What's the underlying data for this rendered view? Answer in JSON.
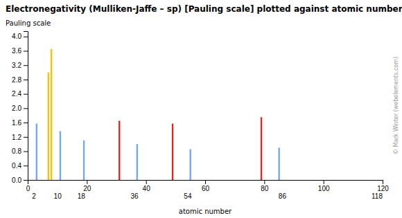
{
  "chart_data": {
    "type": "bar",
    "title": "Electronegativity (Mulliken-Jaffe – sp) [Pauling scale] plotted against atomic number",
    "xlabel": "atomic number",
    "ylabel": "Pauling scale",
    "x": [
      3,
      7,
      8,
      11,
      19,
      31,
      37,
      49,
      55,
      79,
      85
    ],
    "values": [
      1.57,
      3.0,
      3.65,
      1.36,
      1.1,
      1.65,
      1.0,
      1.57,
      0.86,
      1.75,
      0.9
    ],
    "colors": [
      "#6fa8f5",
      "#ffc000",
      "#ffc000",
      "#6fa8f5",
      "#6fa8f5",
      "#e62020",
      "#6fa8f5",
      "#e62020",
      "#6fa8f5",
      "#e62020",
      "#6fa8f5"
    ],
    "xlim": [
      0,
      120
    ],
    "xticks": [
      0,
      20,
      40,
      60,
      80,
      100,
      120
    ],
    "x2lim": [
      0,
      120
    ],
    "x2ticks": [
      2,
      10,
      18,
      36,
      54,
      86,
      118
    ],
    "ylim": [
      0,
      4.15
    ],
    "yticks": [
      {
        "value": 0,
        "label": "0.0"
      },
      0.4,
      0.8,
      1.2,
      1.6,
      {
        "value": 2.0,
        "label": "2.0"
      },
      2.4,
      2.8,
      3.2,
      3.6,
      {
        "value": 4.0,
        "label": "4.0"
      }
    ],
    "grid": false,
    "annotations": [
      "© Mark Winter (webelements.com)"
    ]
  }
}
